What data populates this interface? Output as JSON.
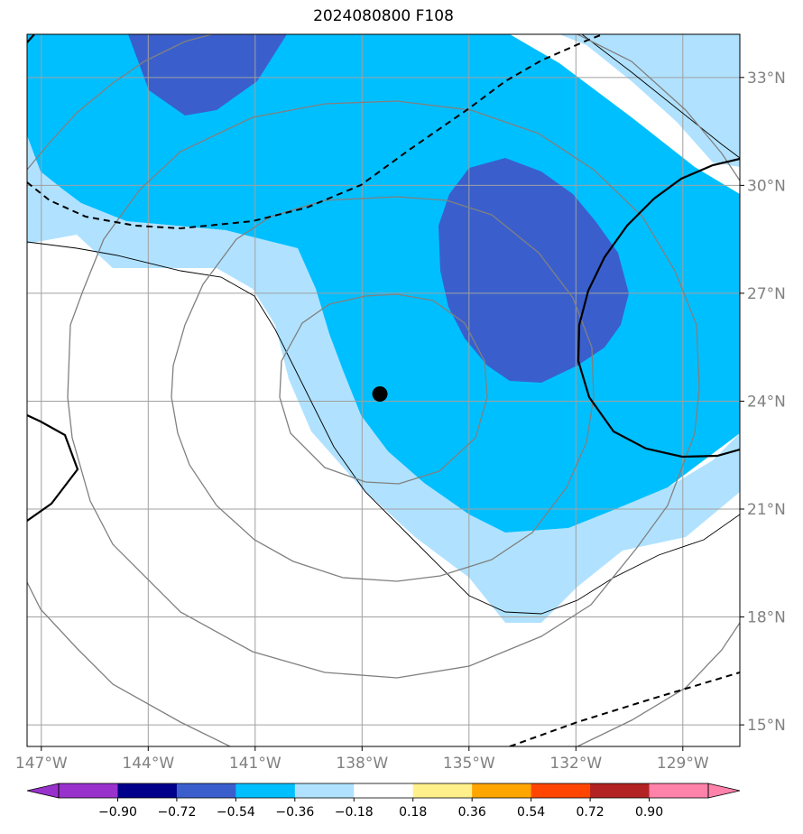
{
  "title": "2024080800 F108",
  "map": {
    "lon_ticks": [
      {
        "value": -147,
        "label": "147°W"
      },
      {
        "value": -144,
        "label": "144°W"
      },
      {
        "value": -141,
        "label": "141°W"
      },
      {
        "value": -138,
        "label": "138°W"
      },
      {
        "value": -135,
        "label": "135°W"
      },
      {
        "value": -132,
        "label": "132°W"
      },
      {
        "value": -129,
        "label": "129°W"
      }
    ],
    "lat_ticks": [
      {
        "value": 33,
        "label": "33°N"
      },
      {
        "value": 30,
        "label": "30°N"
      },
      {
        "value": 27,
        "label": "27°N"
      },
      {
        "value": 24,
        "label": "24°N"
      },
      {
        "value": 21,
        "label": "21°N"
      },
      {
        "value": 18,
        "label": "18°N"
      },
      {
        "value": 15,
        "label": "15°N"
      }
    ],
    "lon_range": [
      -147.4,
      -127.4
    ],
    "lat_range": [
      14.4,
      34.2
    ],
    "storm_center": {
      "lon": -137.5,
      "lat": 24.2
    },
    "colors": {
      "dark_blue": "#3a5fcd",
      "deep_sky": "#00bfff",
      "light_sky": "#b0e2ff",
      "grid": "#a0a0a0",
      "contour_gray": "#808080"
    }
  },
  "colorbar": {
    "colors": [
      "#9932cc",
      "#00008b",
      "#3a5fcd",
      "#00bfff",
      "#b0e2ff",
      "#ffffff",
      "#fff08c",
      "#ffa500",
      "#ff4500",
      "#b22222",
      "#ff82ab",
      "#ff82ab"
    ],
    "under_color": "#9932cc",
    "over_color": "#ff82ab",
    "tick_labels": [
      "−0.90",
      "−0.72",
      "−0.54",
      "−0.36",
      "−0.18",
      "0.18",
      "0.36",
      "0.54",
      "0.72",
      "0.90"
    ]
  }
}
